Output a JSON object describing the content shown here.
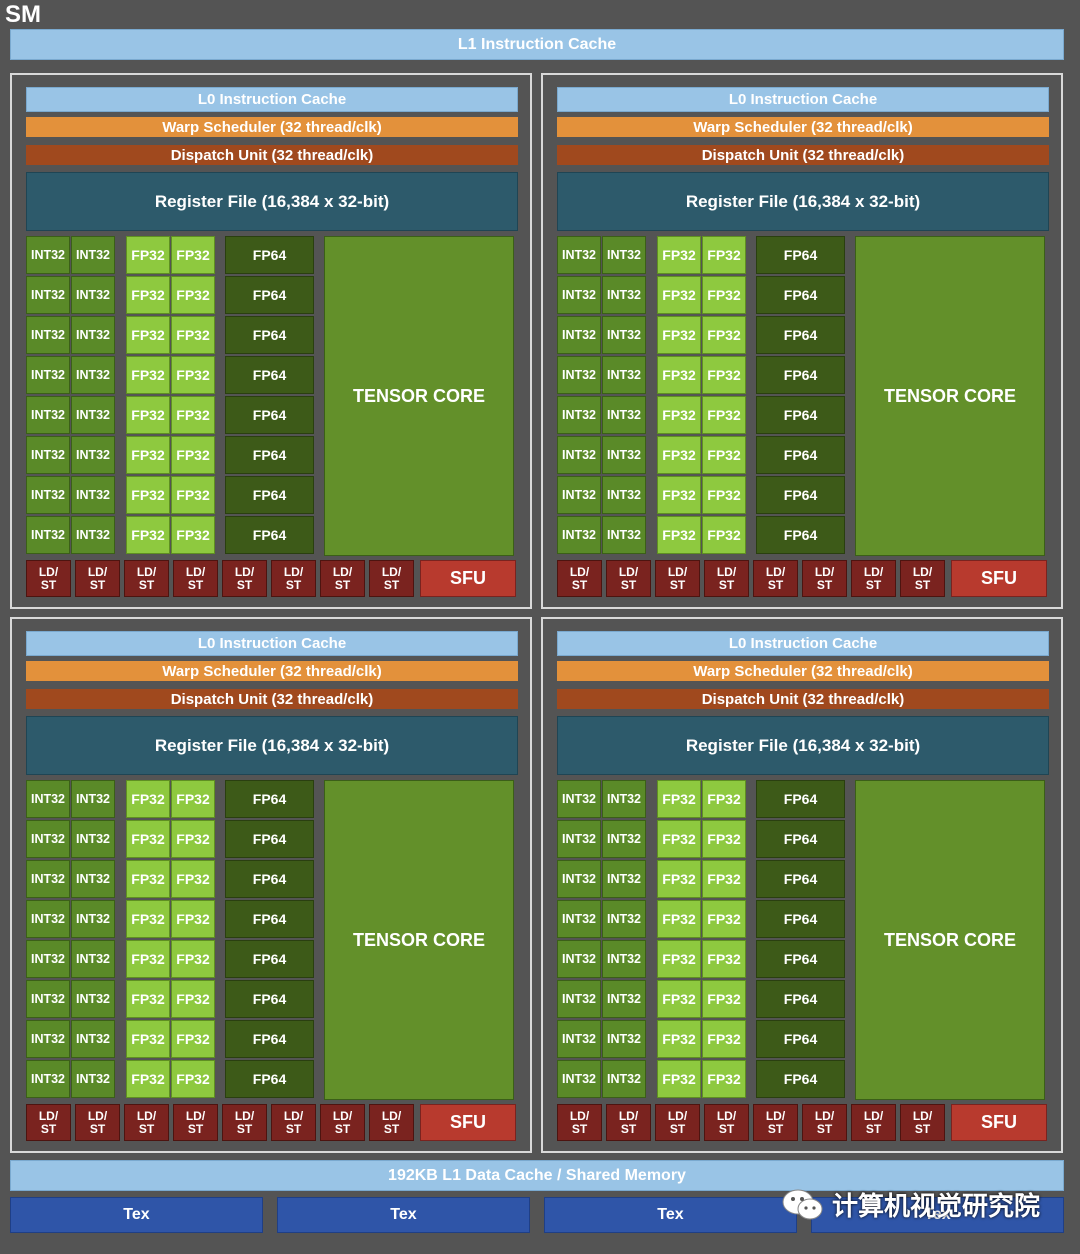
{
  "sm_label": "SM",
  "l1_instruction_cache": "L1 Instruction Cache",
  "l1_data_cache": "192KB L1 Data Cache / Shared Memory",
  "tex_units": [
    "Tex",
    "Tex",
    "Tex",
    "Tex"
  ],
  "partition": {
    "l0_cache": "L0 Instruction Cache",
    "warp_scheduler": "Warp Scheduler (32 thread/clk)",
    "dispatch_unit": "Dispatch Unit (32 thread/clk)",
    "register_file": "Register File (16,384 x 32-bit)",
    "int32_label": "INT32",
    "fp32_label": "FP32",
    "fp64_label": "FP64",
    "tensor_core": "TENSOR CORE",
    "ldst_line1": "LD/",
    "ldst_line2": "ST",
    "sfu": "SFU",
    "rows": 8,
    "ldst_count": 8
  },
  "partitions_count": 4,
  "watermark": "计算机视觉研究院",
  "colors": {
    "background": "#545454",
    "cache": "#99c4e6",
    "warp_scheduler": "#e3913b",
    "dispatch_unit": "#a0491e",
    "register_file": "#2d5a6b",
    "int32": "#5a8a28",
    "fp32": "#8ec93f",
    "fp64": "#3d5a18",
    "tensor_core": "#63902a",
    "ldst": "#7a231f",
    "sfu": "#b83a2e",
    "tex": "#2f55a8"
  }
}
